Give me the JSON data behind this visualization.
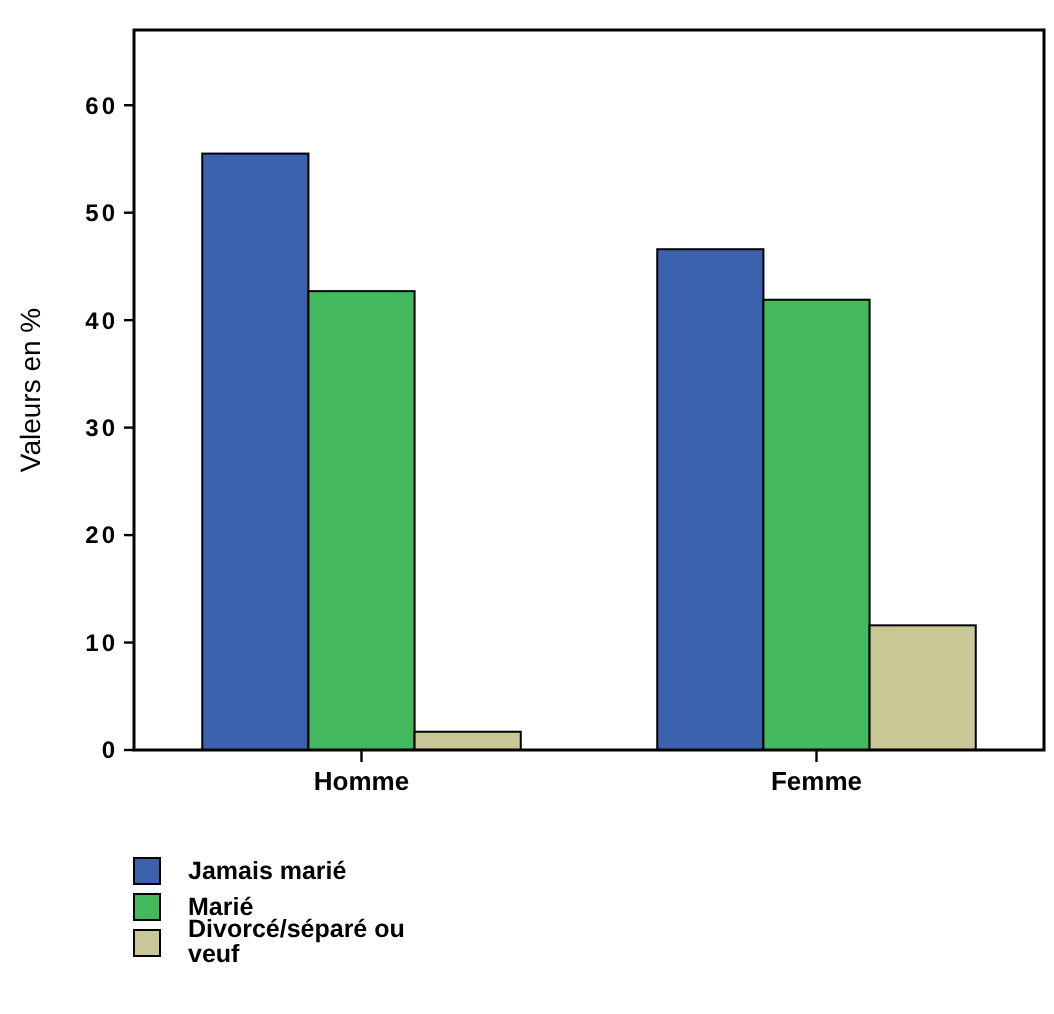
{
  "chart_data": {
    "type": "bar",
    "ylabel": "Valeurs en %",
    "categories": [
      "Homme",
      "Femme"
    ],
    "series": [
      {
        "name": "Jamais marié",
        "color": "#3d62ad",
        "values": [
          55.5,
          46.6
        ]
      },
      {
        "name": "Marié",
        "color": "#44b85c",
        "values": [
          42.7,
          41.9
        ]
      },
      {
        "name": "Divorcé/séparé ou veuf",
        "color": "#c9c795",
        "values": [
          1.7,
          11.6
        ]
      }
    ],
    "ylim": [
      0,
      67
    ],
    "yticks": [
      0,
      10,
      20,
      30,
      40,
      50,
      60
    ],
    "grid": false,
    "legend": "bottom left"
  }
}
